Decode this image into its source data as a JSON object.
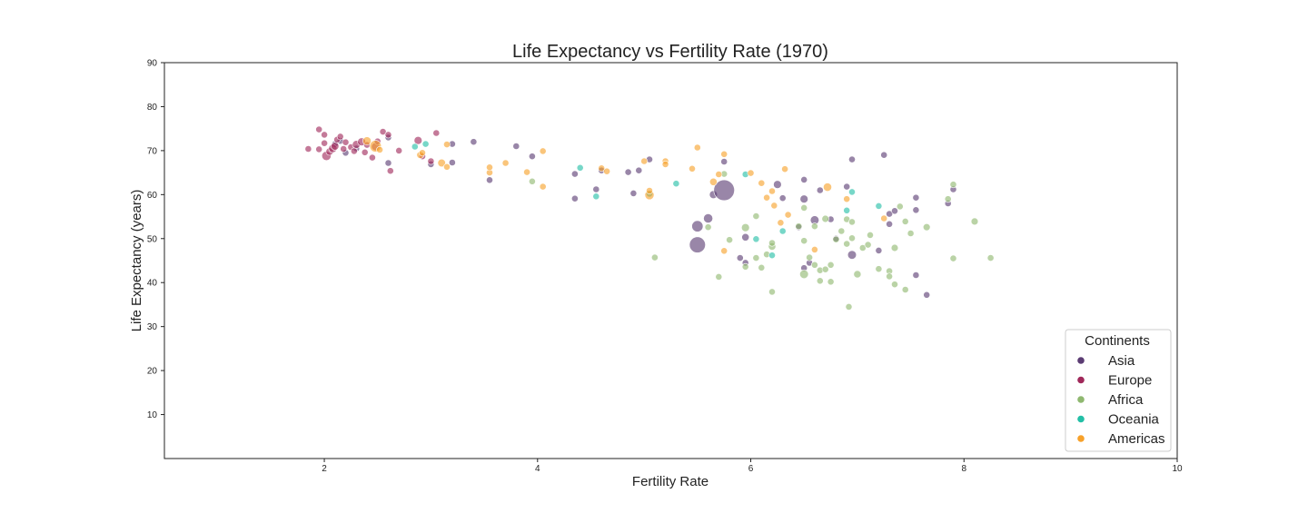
{
  "chart_data": {
    "type": "scatter",
    "title": "Life Expectancy vs Fertility Rate (1970)",
    "xlabel": "Fertility Rate",
    "ylabel": "Life Expectancy (years)",
    "xlim": [
      0.5,
      10
    ],
    "ylim": [
      0,
      90
    ],
    "xticks": [
      2,
      4,
      6,
      8,
      10
    ],
    "yticks": [
      10,
      20,
      30,
      40,
      50,
      60,
      70,
      80,
      90
    ],
    "grid": false,
    "legend": {
      "title": "Continents",
      "placement": "lower-right"
    },
    "series": [
      {
        "name": "Asia",
        "color": "#5b3c73",
        "points": [
          [
            2.1,
            71.5
          ],
          [
            2.15,
            72.2
          ],
          [
            2.2,
            69.5
          ],
          [
            2.3,
            70.5
          ],
          [
            2.6,
            73.0
          ],
          [
            2.6,
            67.2
          ],
          [
            3.0,
            66.9
          ],
          [
            3.2,
            71.5
          ],
          [
            3.2,
            67.3
          ],
          [
            3.4,
            72.0
          ],
          [
            3.55,
            63.3
          ],
          [
            3.8,
            71.0
          ],
          [
            3.95,
            68.7
          ],
          [
            4.35,
            64.7
          ],
          [
            4.35,
            59.1
          ],
          [
            4.55,
            61.2
          ],
          [
            4.6,
            65.5
          ],
          [
            4.85,
            65.1
          ],
          [
            4.9,
            60.3
          ],
          [
            4.95,
            65.5
          ],
          [
            5.05,
            68.0
          ],
          [
            5.5,
            52.8
          ],
          [
            5.5,
            48.6
          ],
          [
            5.6,
            54.6
          ],
          [
            5.65,
            60.0
          ],
          [
            5.75,
            61.0
          ],
          [
            5.75,
            67.5
          ],
          [
            5.9,
            45.6
          ],
          [
            5.95,
            50.3
          ],
          [
            5.95,
            44.5
          ],
          [
            6.25,
            62.3
          ],
          [
            6.3,
            59.2
          ],
          [
            6.45,
            52.6
          ],
          [
            6.5,
            59.0
          ],
          [
            6.5,
            63.4
          ],
          [
            6.5,
            43.3
          ],
          [
            6.6,
            54.2
          ],
          [
            6.65,
            61.0
          ],
          [
            6.75,
            54.4
          ],
          [
            6.9,
            61.8
          ],
          [
            6.95,
            46.3
          ],
          [
            6.95,
            68.0
          ],
          [
            7.2,
            47.3
          ],
          [
            7.25,
            69.0
          ],
          [
            7.3,
            55.6
          ],
          [
            7.3,
            53.3
          ],
          [
            7.35,
            56.3
          ],
          [
            7.55,
            59.3
          ],
          [
            7.55,
            56.5
          ],
          [
            7.55,
            41.7
          ],
          [
            7.65,
            37.2
          ],
          [
            7.85,
            58.0
          ],
          [
            7.9,
            61.2
          ],
          [
            6.55,
            44.5
          ],
          [
            6.8,
            50.0
          ]
        ],
        "sizes": [
          1,
          1,
          1,
          1,
          1,
          1,
          1,
          1,
          1,
          1,
          1,
          1,
          1,
          1,
          1,
          1,
          1,
          1,
          1,
          1,
          1,
          3,
          6,
          2,
          1.5,
          10,
          1,
          1,
          1.3,
          1,
          1.5,
          1,
          1,
          1.5,
          1,
          1,
          1.8,
          1,
          1,
          1,
          1.8,
          1,
          1,
          1,
          1,
          1,
          1,
          1,
          1,
          1,
          1,
          1,
          1,
          1,
          1
        ]
      },
      {
        "name": "Europe",
        "color": "#a0285a",
        "points": [
          [
            1.85,
            70.4
          ],
          [
            1.95,
            74.8
          ],
          [
            1.95,
            70.3
          ],
          [
            2.0,
            73.6
          ],
          [
            2.0,
            71.7
          ],
          [
            2.02,
            68.8
          ],
          [
            2.05,
            69.8
          ],
          [
            2.08,
            70.5
          ],
          [
            2.1,
            71.0
          ],
          [
            2.12,
            72.5
          ],
          [
            2.15,
            73.2
          ],
          [
            2.2,
            71.9
          ],
          [
            2.25,
            70.8
          ],
          [
            2.28,
            69.9
          ],
          [
            2.3,
            71.4
          ],
          [
            2.35,
            72.0
          ],
          [
            2.38,
            69.6
          ],
          [
            2.4,
            71.3
          ],
          [
            2.45,
            68.4
          ],
          [
            2.48,
            70.9
          ],
          [
            2.5,
            72.1
          ],
          [
            2.55,
            74.3
          ],
          [
            2.6,
            73.6
          ],
          [
            2.62,
            65.4
          ],
          [
            2.7,
            70.0
          ],
          [
            2.88,
            72.3
          ],
          [
            2.92,
            68.7
          ],
          [
            3.0,
            67.6
          ],
          [
            3.05,
            74.0
          ],
          [
            2.18,
            70.4
          ]
        ],
        "sizes": [
          1,
          1,
          1,
          1,
          1,
          2,
          1.3,
          1.6,
          1.4,
          1,
          1,
          1,
          1,
          1,
          1.5,
          1.5,
          1,
          1,
          1,
          1.5,
          1,
          1,
          1,
          1,
          1,
          1.5,
          1,
          1,
          1,
          1
        ]
      },
      {
        "name": "Africa",
        "color": "#8fb870",
        "points": [
          [
            3.95,
            63.0
          ],
          [
            5.1,
            45.7
          ],
          [
            5.6,
            52.6
          ],
          [
            5.7,
            41.3
          ],
          [
            5.75,
            64.7
          ],
          [
            5.8,
            49.7
          ],
          [
            5.95,
            43.6
          ],
          [
            5.95,
            52.5
          ],
          [
            6.05,
            45.6
          ],
          [
            6.1,
            43.4
          ],
          [
            6.15,
            46.4
          ],
          [
            6.2,
            48.2
          ],
          [
            6.2,
            37.9
          ],
          [
            6.2,
            49.0
          ],
          [
            6.45,
            52.8
          ],
          [
            6.5,
            57.0
          ],
          [
            6.5,
            41.9
          ],
          [
            6.55,
            45.7
          ],
          [
            6.6,
            44.0
          ],
          [
            6.6,
            52.8
          ],
          [
            6.65,
            40.4
          ],
          [
            6.65,
            42.8
          ],
          [
            6.7,
            43.0
          ],
          [
            6.7,
            54.5
          ],
          [
            6.75,
            44.0
          ],
          [
            6.75,
            40.2
          ],
          [
            6.8,
            49.8
          ],
          [
            6.85,
            51.7
          ],
          [
            6.9,
            48.8
          ],
          [
            6.9,
            54.4
          ],
          [
            6.92,
            34.5
          ],
          [
            6.95,
            53.8
          ],
          [
            6.95,
            50.1
          ],
          [
            7.0,
            41.9
          ],
          [
            7.05,
            47.9
          ],
          [
            7.1,
            48.6
          ],
          [
            7.12,
            50.8
          ],
          [
            7.2,
            43.1
          ],
          [
            7.3,
            42.6
          ],
          [
            7.3,
            41.4
          ],
          [
            7.35,
            39.6
          ],
          [
            7.35,
            47.9
          ],
          [
            7.4,
            57.3
          ],
          [
            7.45,
            38.4
          ],
          [
            7.45,
            53.9
          ],
          [
            7.5,
            51.2
          ],
          [
            7.65,
            52.6
          ],
          [
            7.85,
            59.0
          ],
          [
            7.9,
            45.5
          ],
          [
            7.9,
            62.3
          ],
          [
            8.1,
            53.9
          ],
          [
            8.25,
            45.6
          ],
          [
            6.05,
            55.1
          ],
          [
            6.5,
            49.5
          ]
        ],
        "sizes": [
          1,
          1,
          1,
          1,
          1,
          1,
          1,
          1.5,
          1,
          1,
          1,
          1.3,
          1,
          1,
          1,
          1,
          1.8,
          1,
          1,
          1,
          1,
          1,
          1,
          1.2,
          1,
          1,
          1,
          1,
          1,
          1,
          1,
          1,
          1,
          1.3,
          1,
          1,
          1,
          1,
          1,
          1,
          1,
          1.2,
          1,
          1,
          1,
          1,
          1.2,
          1,
          1,
          1,
          1.2,
          1,
          1,
          1
        ]
      },
      {
        "name": "Oceania",
        "color": "#23bfa6",
        "points": [
          [
            2.85,
            70.9
          ],
          [
            2.95,
            71.5
          ],
          [
            4.4,
            66.1
          ],
          [
            4.55,
            59.6
          ],
          [
            5.05,
            60.2
          ],
          [
            5.3,
            62.5
          ],
          [
            5.95,
            64.6
          ],
          [
            6.05,
            49.9
          ],
          [
            6.2,
            46.2
          ],
          [
            6.3,
            51.7
          ],
          [
            6.9,
            56.4
          ],
          [
            6.95,
            60.6
          ],
          [
            7.2,
            57.4
          ]
        ],
        "sizes": [
          1,
          1,
          1,
          1,
          1,
          1,
          1,
          1,
          1,
          1,
          1,
          1,
          1
        ]
      },
      {
        "name": "Americas",
        "color": "#f7a12a",
        "points": [
          [
            2.4,
            72.2
          ],
          [
            2.48,
            71.0
          ],
          [
            2.52,
            70.2
          ],
          [
            2.9,
            69.0
          ],
          [
            2.92,
            69.5
          ],
          [
            3.1,
            67.2
          ],
          [
            3.15,
            71.4
          ],
          [
            3.15,
            66.3
          ],
          [
            3.55,
            65.0
          ],
          [
            3.55,
            66.2
          ],
          [
            3.7,
            67.2
          ],
          [
            3.9,
            65.1
          ],
          [
            4.05,
            61.8
          ],
          [
            4.05,
            69.9
          ],
          [
            4.6,
            66.0
          ],
          [
            4.65,
            65.3
          ],
          [
            5.0,
            67.6
          ],
          [
            5.05,
            59.9
          ],
          [
            5.05,
            60.9
          ],
          [
            5.2,
            67.6
          ],
          [
            5.2,
            66.9
          ],
          [
            5.45,
            65.9
          ],
          [
            5.5,
            70.7
          ],
          [
            5.65,
            62.9
          ],
          [
            5.7,
            64.6
          ],
          [
            5.75,
            69.2
          ],
          [
            5.75,
            47.2
          ],
          [
            6.0,
            64.9
          ],
          [
            6.1,
            62.6
          ],
          [
            6.15,
            59.3
          ],
          [
            6.2,
            60.8
          ],
          [
            6.22,
            57.5
          ],
          [
            6.28,
            53.6
          ],
          [
            6.32,
            65.8
          ],
          [
            6.35,
            55.4
          ],
          [
            6.6,
            47.5
          ],
          [
            6.72,
            61.7
          ],
          [
            6.9,
            59.0
          ],
          [
            7.25,
            54.6
          ]
        ],
        "sizes": [
          1.6,
          3.2,
          1,
          1.2,
          1,
          1.4,
          1,
          1,
          1,
          1,
          1,
          1,
          1,
          1,
          1,
          1,
          1,
          2,
          1,
          1,
          1,
          1,
          1,
          1.3,
          1,
          1,
          1,
          1,
          1,
          1,
          1,
          1,
          1,
          1,
          1,
          1,
          1.6,
          1,
          1
        ]
      }
    ]
  }
}
